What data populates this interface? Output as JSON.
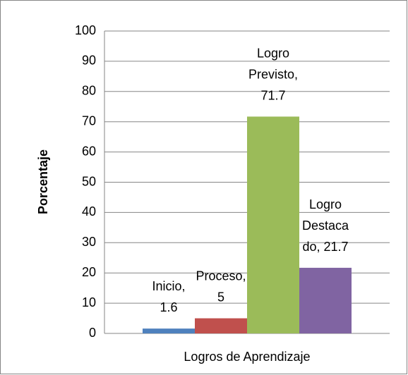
{
  "chart_data": {
    "type": "bar",
    "categories": [
      "Inicio",
      "Proceso",
      "Logro Previsto",
      "Logro Destacado"
    ],
    "values": [
      1.6,
      5,
      71.7,
      21.7
    ],
    "value_labels": [
      "Inicio, 1.6",
      "Proceso, 5",
      "Logro Previsto, 71.7",
      "Logro Destacado, 21.7"
    ],
    "colors": [
      "#4f81bd",
      "#c0504d",
      "#9bbb59",
      "#8064a2"
    ],
    "y_label": "Porcentaje",
    "x_label": "Logros de Aprendizaje",
    "ylim": [
      0,
      100
    ],
    "yticks": [
      0,
      10,
      20,
      30,
      40,
      50,
      60,
      70,
      80,
      90,
      100
    ],
    "grid": true
  }
}
